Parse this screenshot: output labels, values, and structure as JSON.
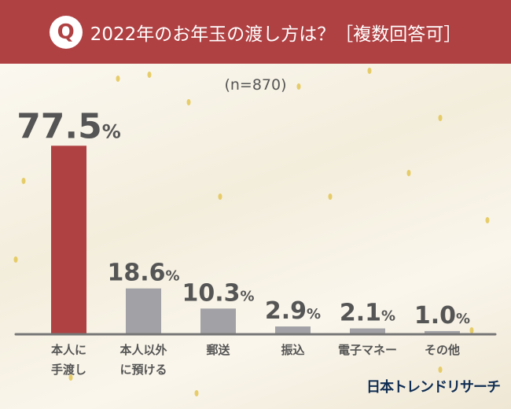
{
  "header": {
    "badge": "Q",
    "title": "2022年のお年玉の渡し方は？［複数回答可］"
  },
  "sample": "(n=870)",
  "logo": "日本トレンドリサーチ",
  "colors": {
    "header": "#b04143",
    "highlight_bar": "#b04143",
    "bar": "#a2a2a6",
    "axis": "#777777",
    "text": "#555555"
  },
  "chart_data": {
    "type": "bar",
    "categories": [
      "本人に\n手渡し",
      "本人以外\nに預ける",
      "郵送",
      "振込",
      "電子マネー",
      "その他"
    ],
    "values": [
      77.5,
      18.6,
      10.3,
      2.9,
      2.1,
      1.0
    ],
    "unit": "%",
    "ylim": [
      0,
      80
    ],
    "grid": false,
    "highlight_index": 0
  }
}
